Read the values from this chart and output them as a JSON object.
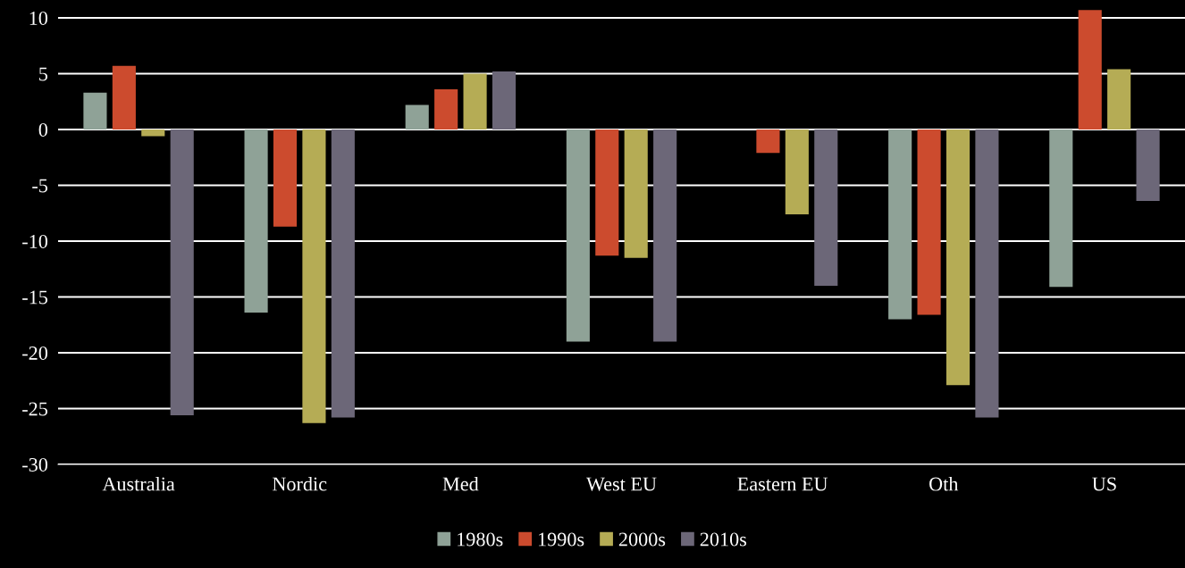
{
  "chart_data": {
    "type": "bar",
    "categories": [
      "Australia",
      "Nordic",
      "Med",
      "West EU",
      "Eastern EU",
      "Oth",
      "US"
    ],
    "series": [
      {
        "name": "1980s",
        "color": "#8fa297",
        "values": [
          3.3,
          -16.4,
          2.2,
          -19.0,
          null,
          -17.0,
          -14.1
        ]
      },
      {
        "name": "1990s",
        "color": "#cc4b2e",
        "values": [
          5.7,
          -8.7,
          3.6,
          -11.3,
          -2.1,
          -16.6,
          10.7
        ]
      },
      {
        "name": "2000s",
        "color": "#b5ac55",
        "values": [
          -0.6,
          -26.3,
          5.0,
          -11.5,
          -7.6,
          -22.9,
          5.4
        ]
      },
      {
        "name": "2010s",
        "color": "#6c6778",
        "values": [
          -25.6,
          -25.8,
          5.2,
          -19.0,
          -14.0,
          -25.8,
          -6.4
        ]
      }
    ],
    "ylim": [
      -30,
      11.5
    ],
    "yticks": [
      -30,
      -25,
      -20,
      -15,
      -10,
      -5,
      0,
      5,
      10
    ],
    "grid": "y",
    "legend": "bottom"
  }
}
